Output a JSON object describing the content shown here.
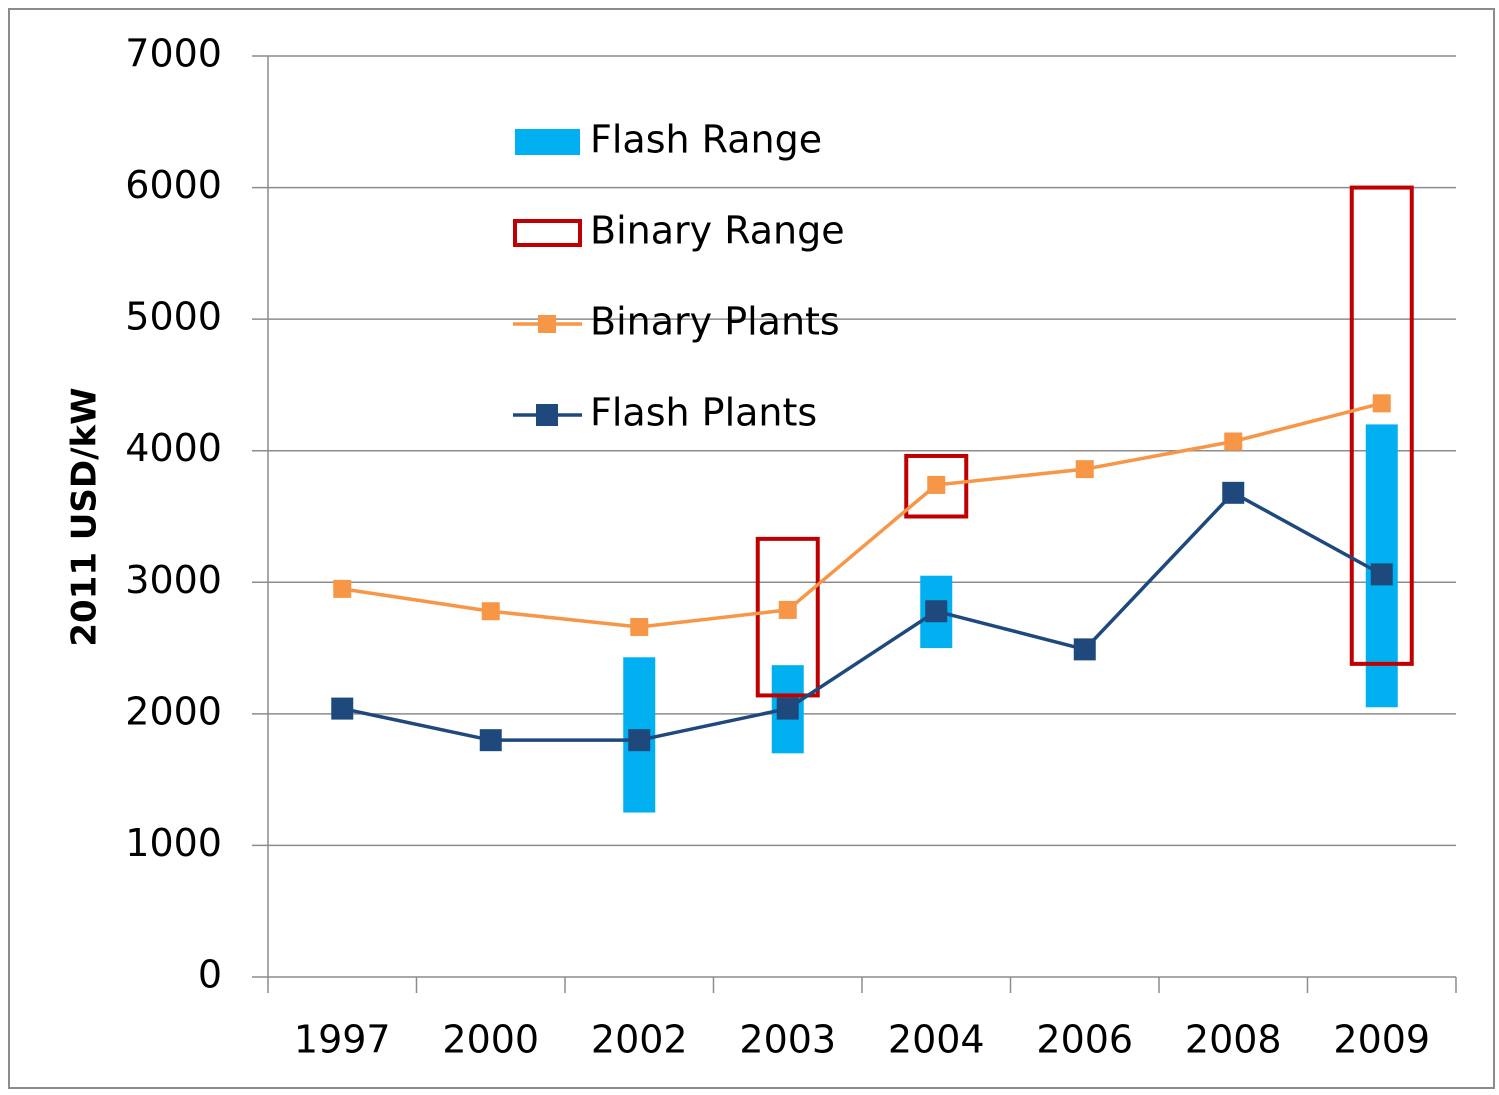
{
  "chart_data": {
    "type": "line",
    "y_label": "2011 USD/kW",
    "categories": [
      "1997",
      "2000",
      "2002",
      "2003",
      "2004",
      "2006",
      "2008",
      "2009"
    ],
    "ylim": [
      0,
      7000
    ],
    "yticks": [
      0,
      1000,
      2000,
      3000,
      4000,
      5000,
      6000,
      7000
    ],
    "grid": true,
    "legend": "upper left",
    "series": [
      {
        "name": "Flash Range",
        "type": "range",
        "filled": true,
        "color": "#00b0f0",
        "low": [
          null,
          null,
          1250,
          1700,
          2500,
          null,
          null,
          2050
        ],
        "high": [
          null,
          null,
          2430,
          2370,
          3050,
          null,
          null,
          4200
        ]
      },
      {
        "name": "Binary Range",
        "type": "range",
        "filled": false,
        "color": "#c00000",
        "low": [
          null,
          null,
          null,
          2140,
          3500,
          null,
          null,
          2380
        ],
        "high": [
          null,
          null,
          null,
          3330,
          3960,
          null,
          null,
          6000
        ]
      },
      {
        "name": "Binary Plants",
        "type": "line",
        "color": "#f79646",
        "values": [
          2950,
          2780,
          2660,
          2790,
          3740,
          3860,
          4070,
          4360
        ]
      },
      {
        "name": "Flash Plants",
        "type": "line",
        "color": "#1f497d",
        "values": [
          2040,
          1800,
          1800,
          2040,
          2780,
          2490,
          3680,
          3060
        ]
      }
    ]
  }
}
